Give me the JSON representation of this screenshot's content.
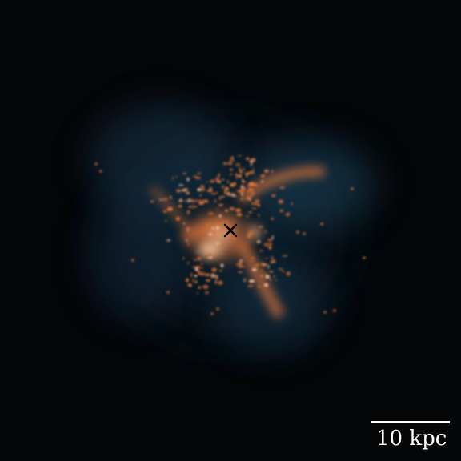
{
  "image": {
    "kind": "simulation-projection",
    "colors": {
      "background": "#050608",
      "diffuse_gas": "#1d4863",
      "dense_gas": "#e2763a",
      "hot_core": "#ffd2a6",
      "center_marker": "#000000",
      "scale_bar": "#ffffff"
    }
  },
  "scale_bar": {
    "label": "10 kpc"
  },
  "center_marker": {
    "symbol": "×"
  }
}
